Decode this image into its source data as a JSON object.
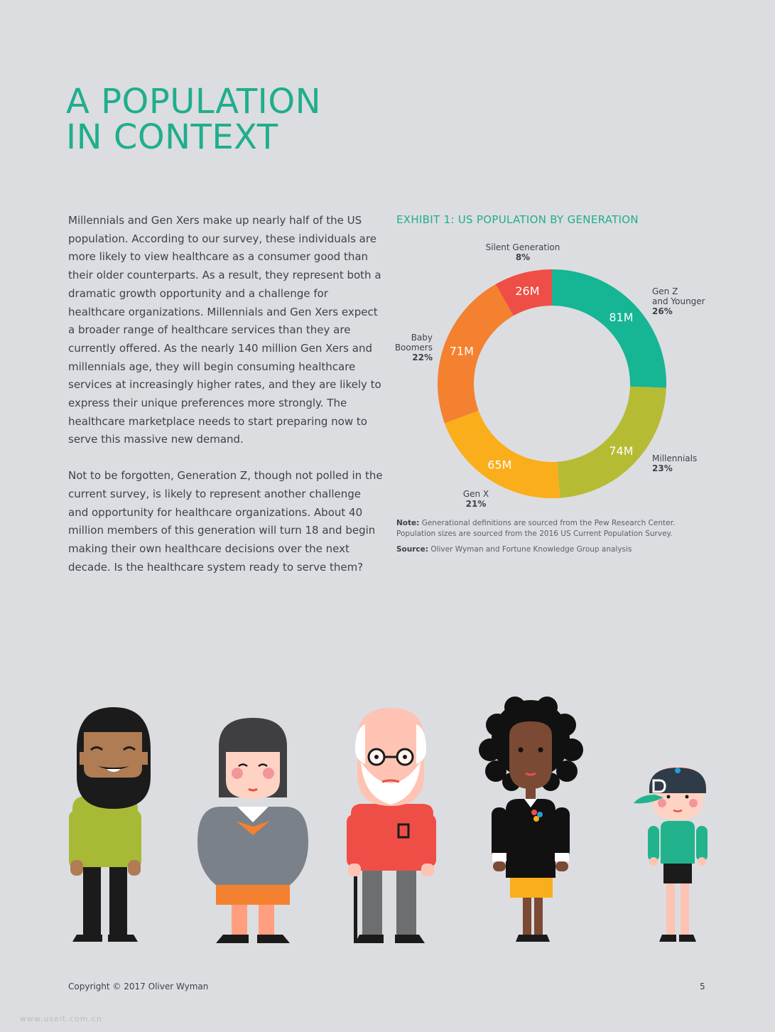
{
  "heading": {
    "line1": "A POPULATION",
    "line2": "IN CONTEXT"
  },
  "body": {
    "paragraph1": "Millennials and Gen Xers make up nearly half of the US population. According to our survey, these individuals are more likely to view healthcare as a consumer good than their older counterparts. As a result, they represent both a dramatic growth opportunity and a challenge for healthcare organizations. Millennials and Gen Xers expect a broader range of healthcare services than they are currently offered. As the nearly 140 million Gen Xers and millennials age, they will begin consuming healthcare services at increasingly higher rates, and they are likely to express their unique preferences more strongly. The healthcare marketplace needs to start preparing now to serve this massive new demand.",
    "paragraph2": "Not to be forgotten, Generation Z, though not polled in the current survey, is likely to represent another challenge and opportunity for healthcare organizations. About 40 million members of this generation will turn 18 and begin making their own healthcare decisions over the next decade. Is the healthcare system ready to serve them?"
  },
  "chart_data": {
    "type": "pie",
    "donut": true,
    "title": "EXHIBIT 1: US POPULATION BY GENERATION",
    "legend": "none",
    "segments": [
      {
        "name": "Gen Z and Younger",
        "label_lines": [
          "Gen Z",
          "and Younger"
        ],
        "value": 81,
        "value_label": "81M",
        "percent_label": "26%",
        "color": "#16b594"
      },
      {
        "name": "Millennials",
        "label_lines": [
          "Millennials"
        ],
        "value": 74,
        "value_label": "74M",
        "percent_label": "23%",
        "color": "#b6bb34"
      },
      {
        "name": "Gen X",
        "label_lines": [
          "Gen X"
        ],
        "value": 65,
        "value_label": "65M",
        "percent_label": "21%",
        "color": "#fbae1b"
      },
      {
        "name": "Baby Boomers",
        "label_lines": [
          "Baby",
          "Boomers"
        ],
        "value": 71,
        "value_label": "71M",
        "percent_label": "22%",
        "color": "#f48130"
      },
      {
        "name": "Silent Generation",
        "label_lines": [
          "Silent Generation"
        ],
        "value": 26,
        "value_label": "26M",
        "percent_label": "8%",
        "color": "#ef4e47"
      }
    ]
  },
  "notes": {
    "note_label": "Note:",
    "note_text": "Generational definitions are sourced from the Pew Research Center. Population sizes are sourced from the 2016 US Current Population Survey.",
    "source_label": "Source:",
    "source_text": "Oliver Wyman and Fortune Knowledge Group analysis"
  },
  "footer": {
    "copyright": "Copyright © 2017 Oliver Wyman",
    "page_number": "5"
  },
  "watermark": "www.useit.com.cn",
  "illustration": {
    "figures": [
      {
        "icon": "bearded-man-icon",
        "shirt_color": "#a8b935"
      },
      {
        "icon": "woman-bob-hair-icon",
        "shirt_color": "#7a8189"
      },
      {
        "icon": "elderly-man-cane-icon",
        "shirt_color": "#ef4e47"
      },
      {
        "icon": "woman-curly-hair-icon",
        "shirt_color": "#1a1a1a"
      },
      {
        "icon": "boy-cap-icon",
        "shirt_color": "#22b38c"
      }
    ]
  }
}
